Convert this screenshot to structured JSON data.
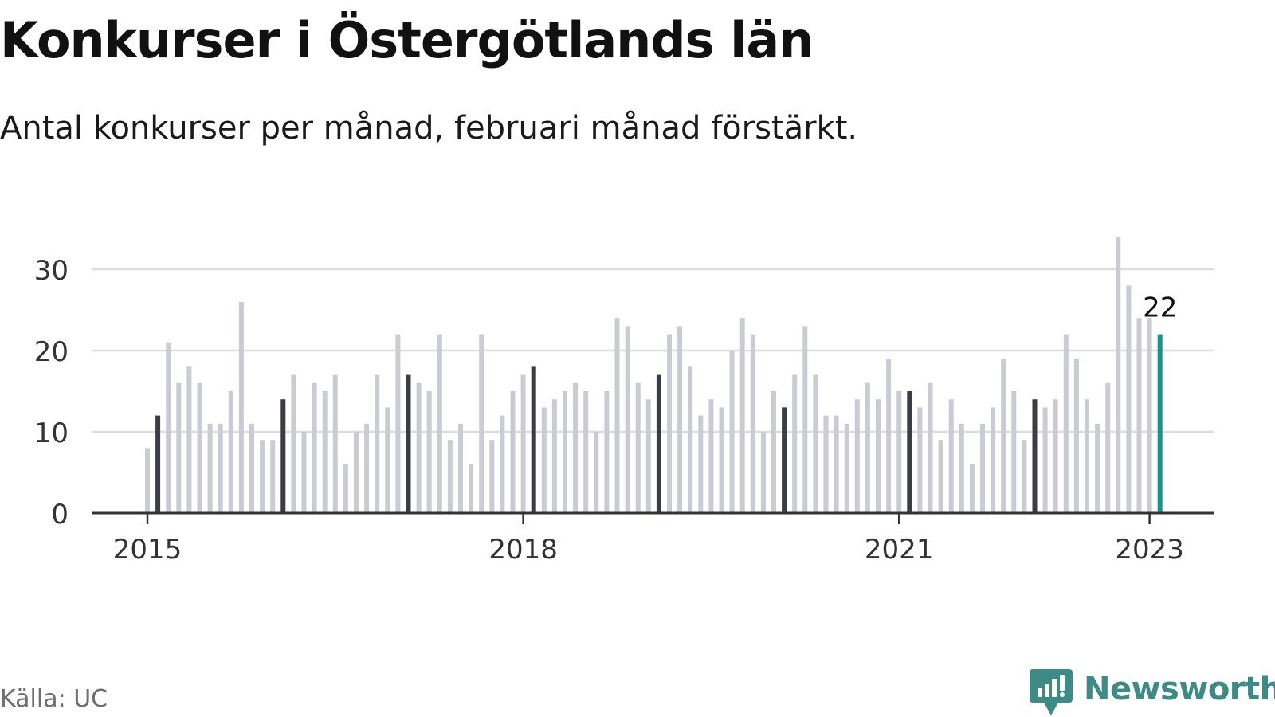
{
  "title": "Konkurser i Östergötlands län",
  "subtitle": "Antal konkurser per månad, februari månad förstärkt.",
  "source": "Källa: UC",
  "brand": {
    "name": "Newsworthy",
    "icon": "newsworthy-logo-icon"
  },
  "colors": {
    "regular": "#cbcbd3",
    "february": "#3b3c46",
    "latest": "#14968c",
    "axis": "#333333",
    "grid": "#dddddd"
  },
  "chart_data": {
    "type": "bar",
    "title": "Konkurser i Östergötlands län",
    "subtitle": "Antal konkurser per månad, februari månad förstärkt.",
    "xlabel": "",
    "ylabel": "",
    "ylim": [
      0,
      35
    ],
    "yticks": [
      0,
      10,
      20,
      30
    ],
    "xtick_labels": [
      {
        "label": "2015",
        "month_index": 0
      },
      {
        "label": "2018",
        "month_index": 36
      },
      {
        "label": "2021",
        "month_index": 72
      },
      {
        "label": "2023",
        "month_index": 96
      }
    ],
    "start": "2015-01",
    "grid": true,
    "highlight": "february",
    "latest_label": "22",
    "values": [
      8,
      12,
      21,
      16,
      18,
      16,
      11,
      11,
      15,
      26,
      11,
      9,
      9,
      14,
      17,
      10,
      16,
      15,
      17,
      6,
      10,
      11,
      17,
      13,
      22,
      17,
      16,
      15,
      22,
      9,
      11,
      6,
      22,
      9,
      12,
      15,
      17,
      18,
      13,
      14,
      15,
      16,
      15,
      10,
      15,
      24,
      23,
      16,
      14,
      17,
      22,
      23,
      18,
      12,
      14,
      13,
      20,
      24,
      22,
      10,
      15,
      13,
      17,
      23,
      17,
      12,
      12,
      11,
      14,
      16,
      14,
      19,
      15,
      15,
      13,
      16,
      9,
      14,
      11,
      6,
      11,
      13,
      19,
      15,
      9,
      14,
      13,
      14,
      22,
      19,
      14,
      11,
      16,
      34,
      28,
      24,
      24,
      22
    ]
  }
}
